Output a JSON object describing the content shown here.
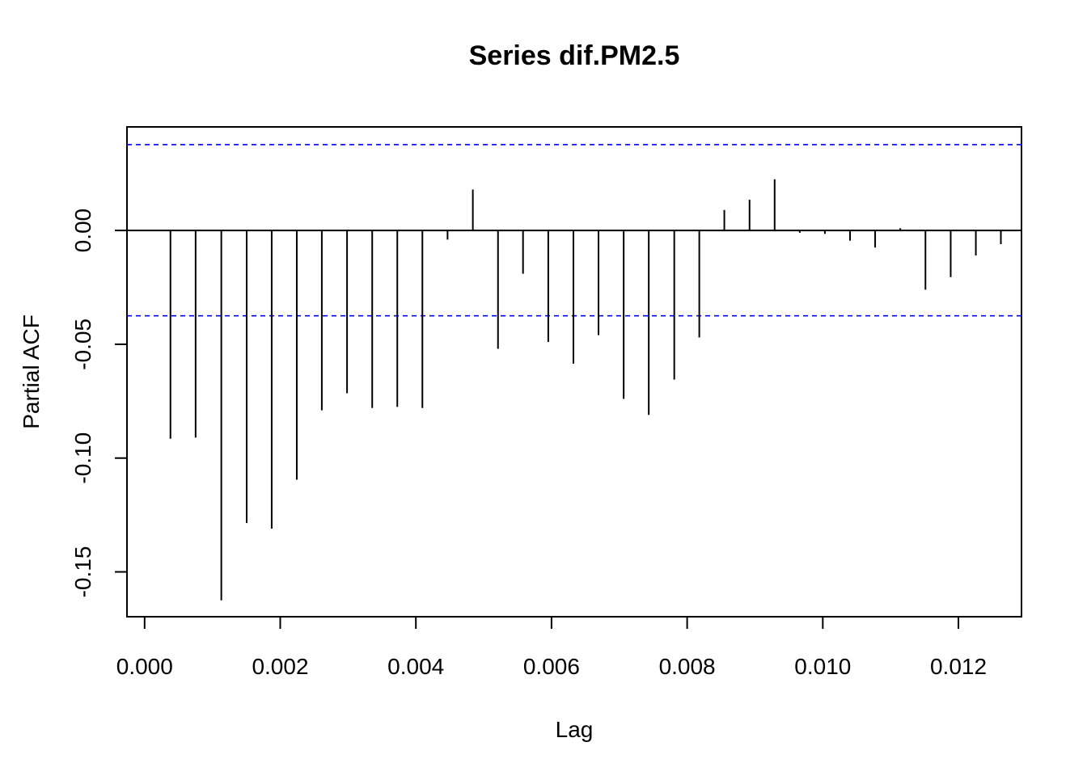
{
  "chart_data": {
    "type": "bar",
    "title": "Series  dif.PM2.5",
    "xlabel": "Lag",
    "ylabel": "Partial ACF",
    "xlim": [
      -0.00026,
      0.01293
    ],
    "ylim": [
      -0.1697,
      0.0455
    ],
    "xticks": [
      {
        "value": 0.0,
        "label": "0.000"
      },
      {
        "value": 0.002,
        "label": "0.002"
      },
      {
        "value": 0.004,
        "label": "0.004"
      },
      {
        "value": 0.006,
        "label": "0.006"
      },
      {
        "value": 0.008,
        "label": "0.008"
      },
      {
        "value": 0.01,
        "label": "0.010"
      },
      {
        "value": 0.012,
        "label": "0.012"
      }
    ],
    "yticks": [
      {
        "value": 0.0,
        "label": "0.00"
      },
      {
        "value": -0.05,
        "label": "-0.05"
      },
      {
        "value": -0.1,
        "label": "-0.10"
      },
      {
        "value": -0.15,
        "label": "-0.15"
      }
    ],
    "confidence_bounds": [
      0.0377,
      -0.0375
    ],
    "grid": false,
    "colors": {
      "bars": "#000000",
      "bounds": "#0000ff",
      "frame": "#000000"
    },
    "series": [
      {
        "x": [
          0.000381,
          0.000752,
          0.001131,
          0.001505,
          0.001874,
          0.002244,
          0.002613,
          0.002985,
          0.003356,
          0.003726,
          0.004096,
          0.004467,
          0.00484,
          0.005211,
          0.00558,
          0.005952,
          0.006323,
          0.006693,
          0.007064,
          0.007434,
          0.00781,
          0.008179,
          0.008548,
          0.00892,
          0.00929,
          0.009661,
          0.010031,
          0.010402,
          0.010772,
          0.011143,
          0.011514,
          0.011886,
          0.012257,
          0.012626
        ],
        "values": [
          -0.0915,
          -0.091,
          -0.1625,
          -0.1285,
          -0.131,
          -0.1095,
          -0.079,
          -0.0715,
          -0.078,
          -0.0775,
          -0.078,
          -0.004,
          0.018,
          -0.052,
          -0.019,
          -0.049,
          -0.0585,
          -0.046,
          -0.074,
          -0.081,
          -0.0655,
          -0.047,
          0.009,
          0.0135,
          0.0225,
          -0.001,
          -0.0015,
          -0.0045,
          -0.0075,
          0.001,
          -0.026,
          -0.0205,
          -0.011,
          -0.006
        ]
      }
    ]
  }
}
